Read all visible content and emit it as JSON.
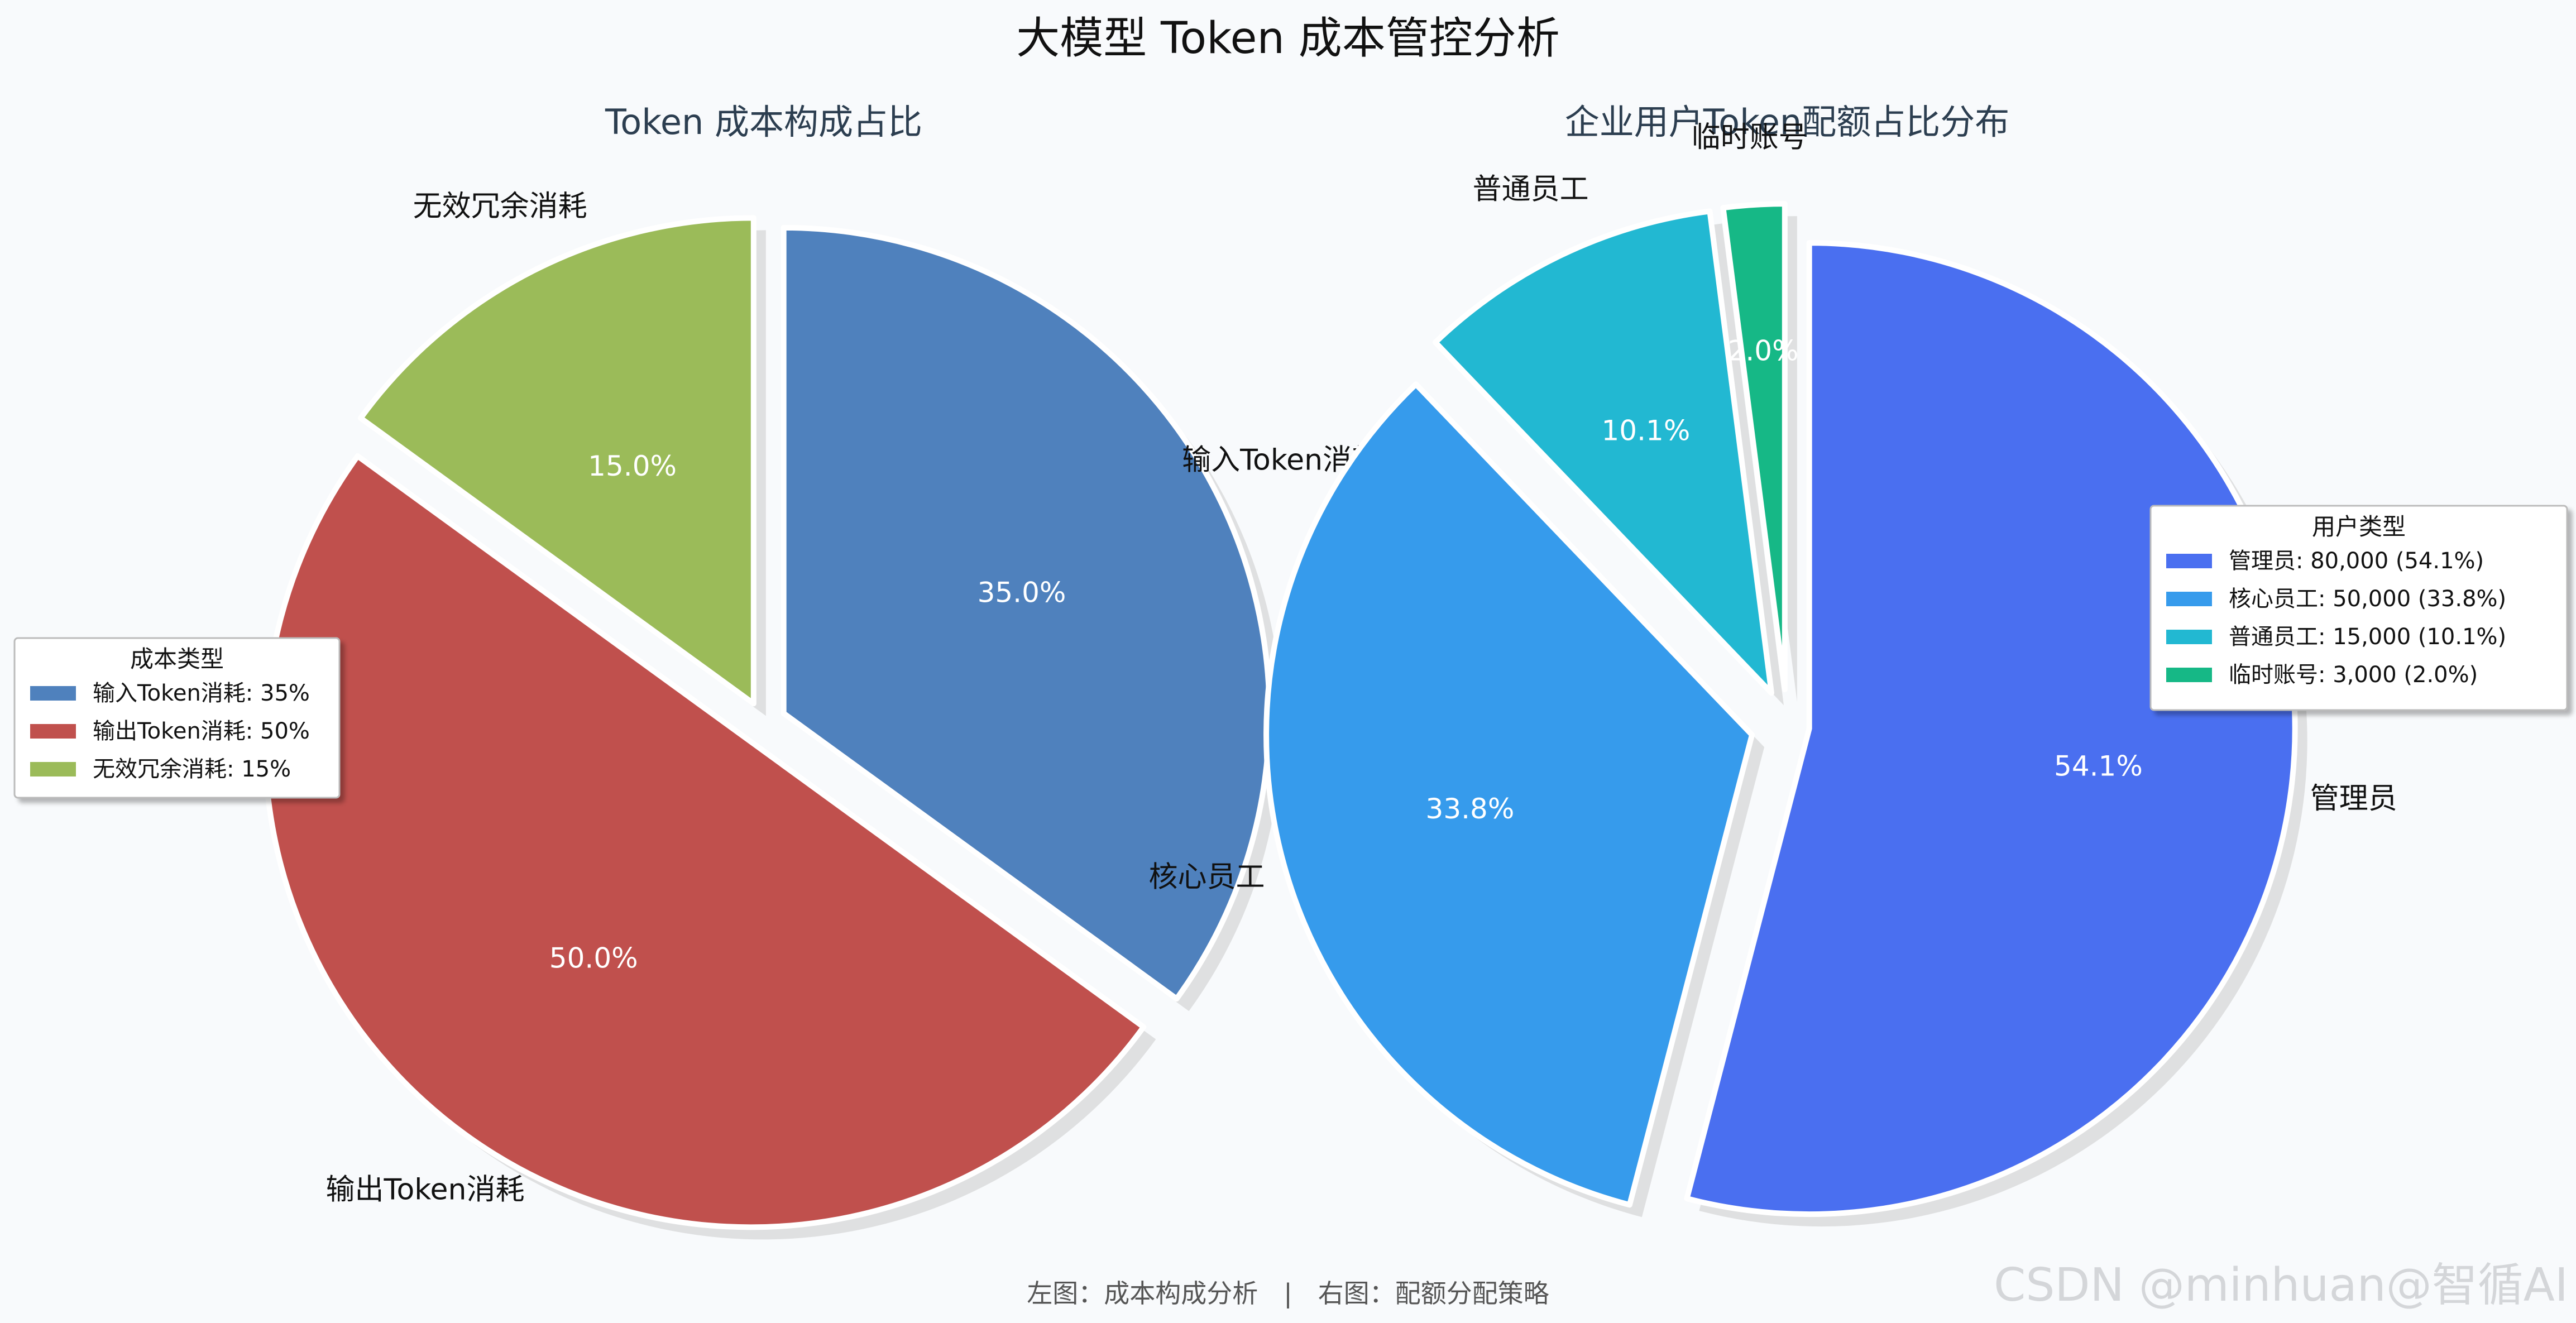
{
  "title": "大模型 Token 成本管控分析",
  "footer": "左图：成本构成分析　|　右图：配额分配策略",
  "watermark": "CSDN @minhuan@智循AI",
  "chart_data": [
    {
      "type": "pie",
      "title": "Token 成本构成占比",
      "legend_title": "成本类型",
      "legend_placement": "left",
      "slices": [
        {
          "label": "输入Token消耗",
          "value": 35,
          "pct": "35.0%",
          "legend": "输入Token消耗: 35%",
          "color": "#4f81bd"
        },
        {
          "label": "输出Token消耗",
          "value": 50,
          "pct": "50.0%",
          "legend": "输出Token消耗: 50%",
          "color": "#c0504d"
        },
        {
          "label": "无效冗余消耗",
          "value": 15,
          "pct": "15.0%",
          "legend": "无效冗余消耗: 15%",
          "color": "#9bbb59"
        }
      ]
    },
    {
      "type": "pie",
      "title": "企业用户Token配额占比分布",
      "legend_title": "用户类型",
      "legend_placement": "right",
      "slices": [
        {
          "label": "管理员",
          "value": 80000,
          "pct": "54.1%",
          "legend": "管理员: 80,000 (54.1%)",
          "color": "#4a6ff0"
        },
        {
          "label": "核心员工",
          "value": 50000,
          "pct": "33.8%",
          "legend": "核心员工: 50,000 (33.8%)",
          "color": "#369bec"
        },
        {
          "label": "普通员工",
          "value": 15000,
          "pct": "10.1%",
          "legend": "普通员工: 15,000 (10.1%)",
          "color": "#22b8d2"
        },
        {
          "label": "临时账号",
          "value": 3000,
          "pct": "2.0%",
          "legend": "临时账号: 3,000 (2.0%)",
          "color": "#16b886"
        }
      ]
    }
  ]
}
